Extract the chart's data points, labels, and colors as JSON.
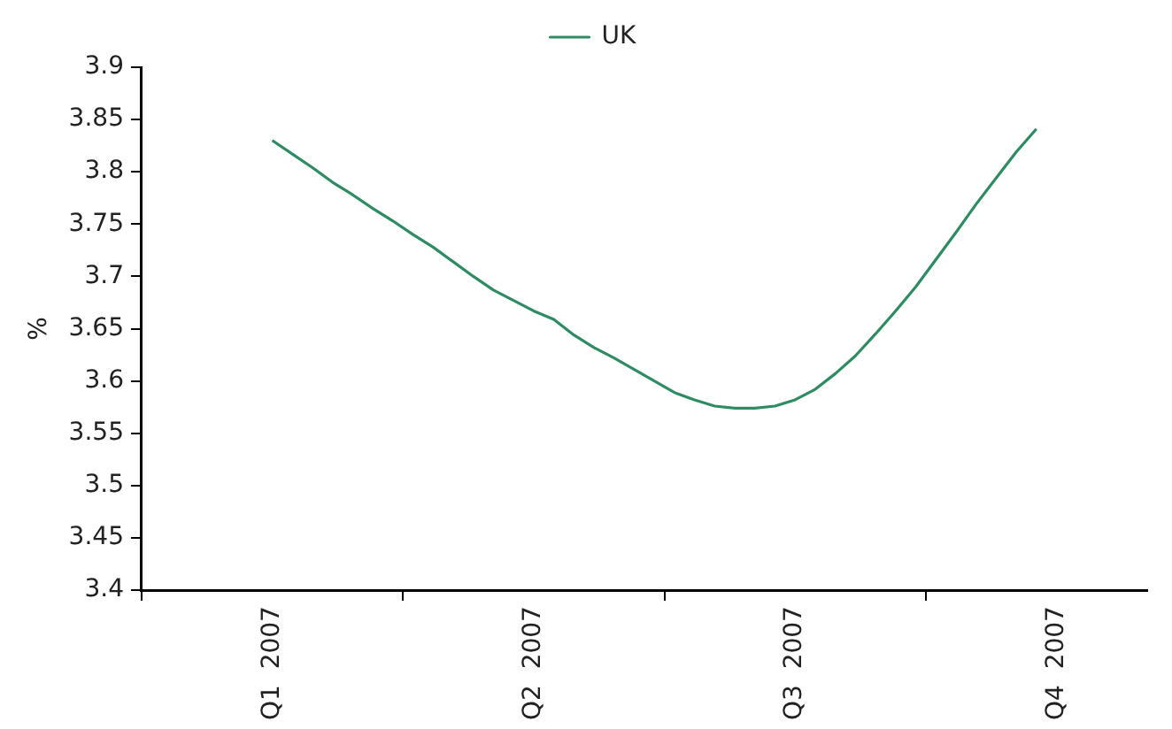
{
  "chart_data": {
    "type": "line",
    "ylabel": "%",
    "legend": "top",
    "grid": false,
    "marker": "none",
    "line_style": "solid",
    "categories": [
      null,
      null,
      null,
      null,
      null,
      null,
      "Q1  2007",
      null,
      null,
      null,
      null,
      null,
      null,
      null,
      null,
      null,
      null,
      null,
      null,
      "Q2  2007",
      null,
      null,
      null,
      null,
      null,
      null,
      null,
      null,
      null,
      null,
      null,
      null,
      "Q3  2007",
      null,
      null,
      null,
      null,
      null,
      null,
      null,
      null,
      null,
      null,
      null,
      null,
      "Q4  2007",
      null,
      null,
      null,
      null
    ],
    "ylim": [
      3.4,
      3.9
    ],
    "yticks": [
      3.4,
      3.45,
      3.5,
      3.55,
      3.6,
      3.65,
      3.7,
      3.75,
      3.8,
      3.85,
      3.9
    ],
    "series": [
      {
        "name": "UK",
        "color": "#2e8b63",
        "values": [
          null,
          null,
          null,
          null,
          null,
          null,
          3.83,
          3.817,
          3.804,
          3.79,
          3.778,
          3.765,
          3.753,
          3.74,
          3.728,
          3.714,
          3.7,
          3.687,
          3.677,
          3.667,
          3.659,
          3.644,
          3.632,
          3.622,
          3.611,
          3.6,
          3.589,
          3.582,
          3.576,
          3.574,
          3.574,
          3.576,
          3.582,
          3.592,
          3.607,
          3.624,
          3.645,
          3.667,
          3.69,
          3.716,
          3.742,
          3.769,
          3.794,
          3.819,
          3.841,
          null,
          null,
          null,
          null,
          null
        ]
      }
    ]
  }
}
